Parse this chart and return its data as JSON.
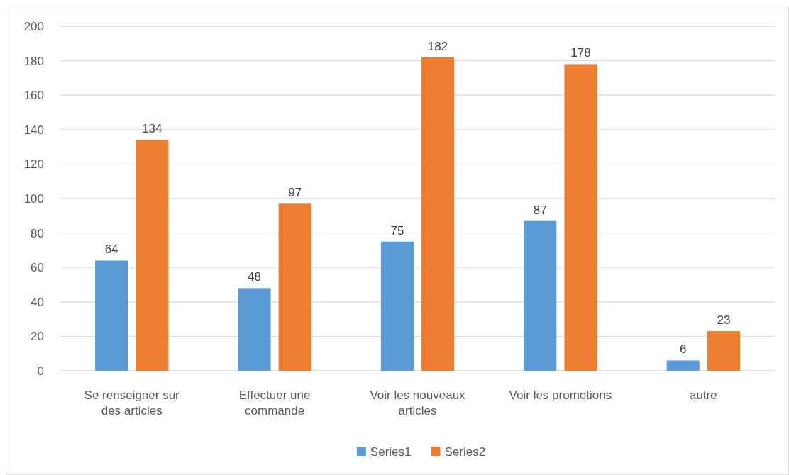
{
  "chart_data": {
    "type": "bar",
    "categories": [
      "Se renseigner sur des articles",
      "Effectuer une commande",
      "Voir les nouveaux articles",
      "Voir les promotions",
      "autre"
    ],
    "series": [
      {
        "name": "Series1",
        "color": "#5b9bd5",
        "values": [
          64,
          48,
          75,
          87,
          6
        ]
      },
      {
        "name": "Series2",
        "color": "#ed7d31",
        "values": [
          134,
          97,
          182,
          178,
          23
        ]
      }
    ],
    "ylim": [
      0,
      200
    ],
    "yticks": [
      0,
      20,
      40,
      60,
      80,
      100,
      120,
      140,
      160,
      180,
      200
    ],
    "grid": "y",
    "legend": "bottom",
    "data_labels": true
  }
}
